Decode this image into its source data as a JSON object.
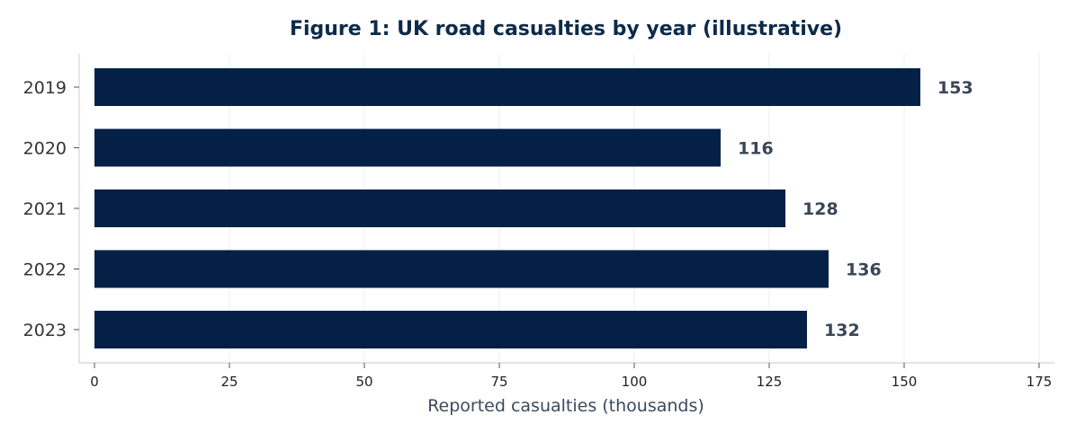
{
  "chart_data": {
    "type": "bar",
    "orientation": "horizontal",
    "title": "Figure 1: UK road casualties by year (illustrative)",
    "xlabel": "Reported casualties (thousands)",
    "ylabel": "",
    "categories": [
      "2019",
      "2020",
      "2021",
      "2022",
      "2023"
    ],
    "values": [
      153,
      116,
      128,
      136,
      132
    ],
    "data_labels": [
      "153",
      "116",
      "128",
      "136",
      "132"
    ],
    "xlim": [
      0,
      175
    ],
    "xticks": [
      0,
      25,
      50,
      75,
      100,
      125,
      150,
      175
    ],
    "xtick_labels": [
      "0",
      "25",
      "50",
      "75",
      "100",
      "125",
      "150",
      "175"
    ],
    "grid": "vertical",
    "bar_color": "#042046",
    "title_color": "#0d2a4a"
  }
}
